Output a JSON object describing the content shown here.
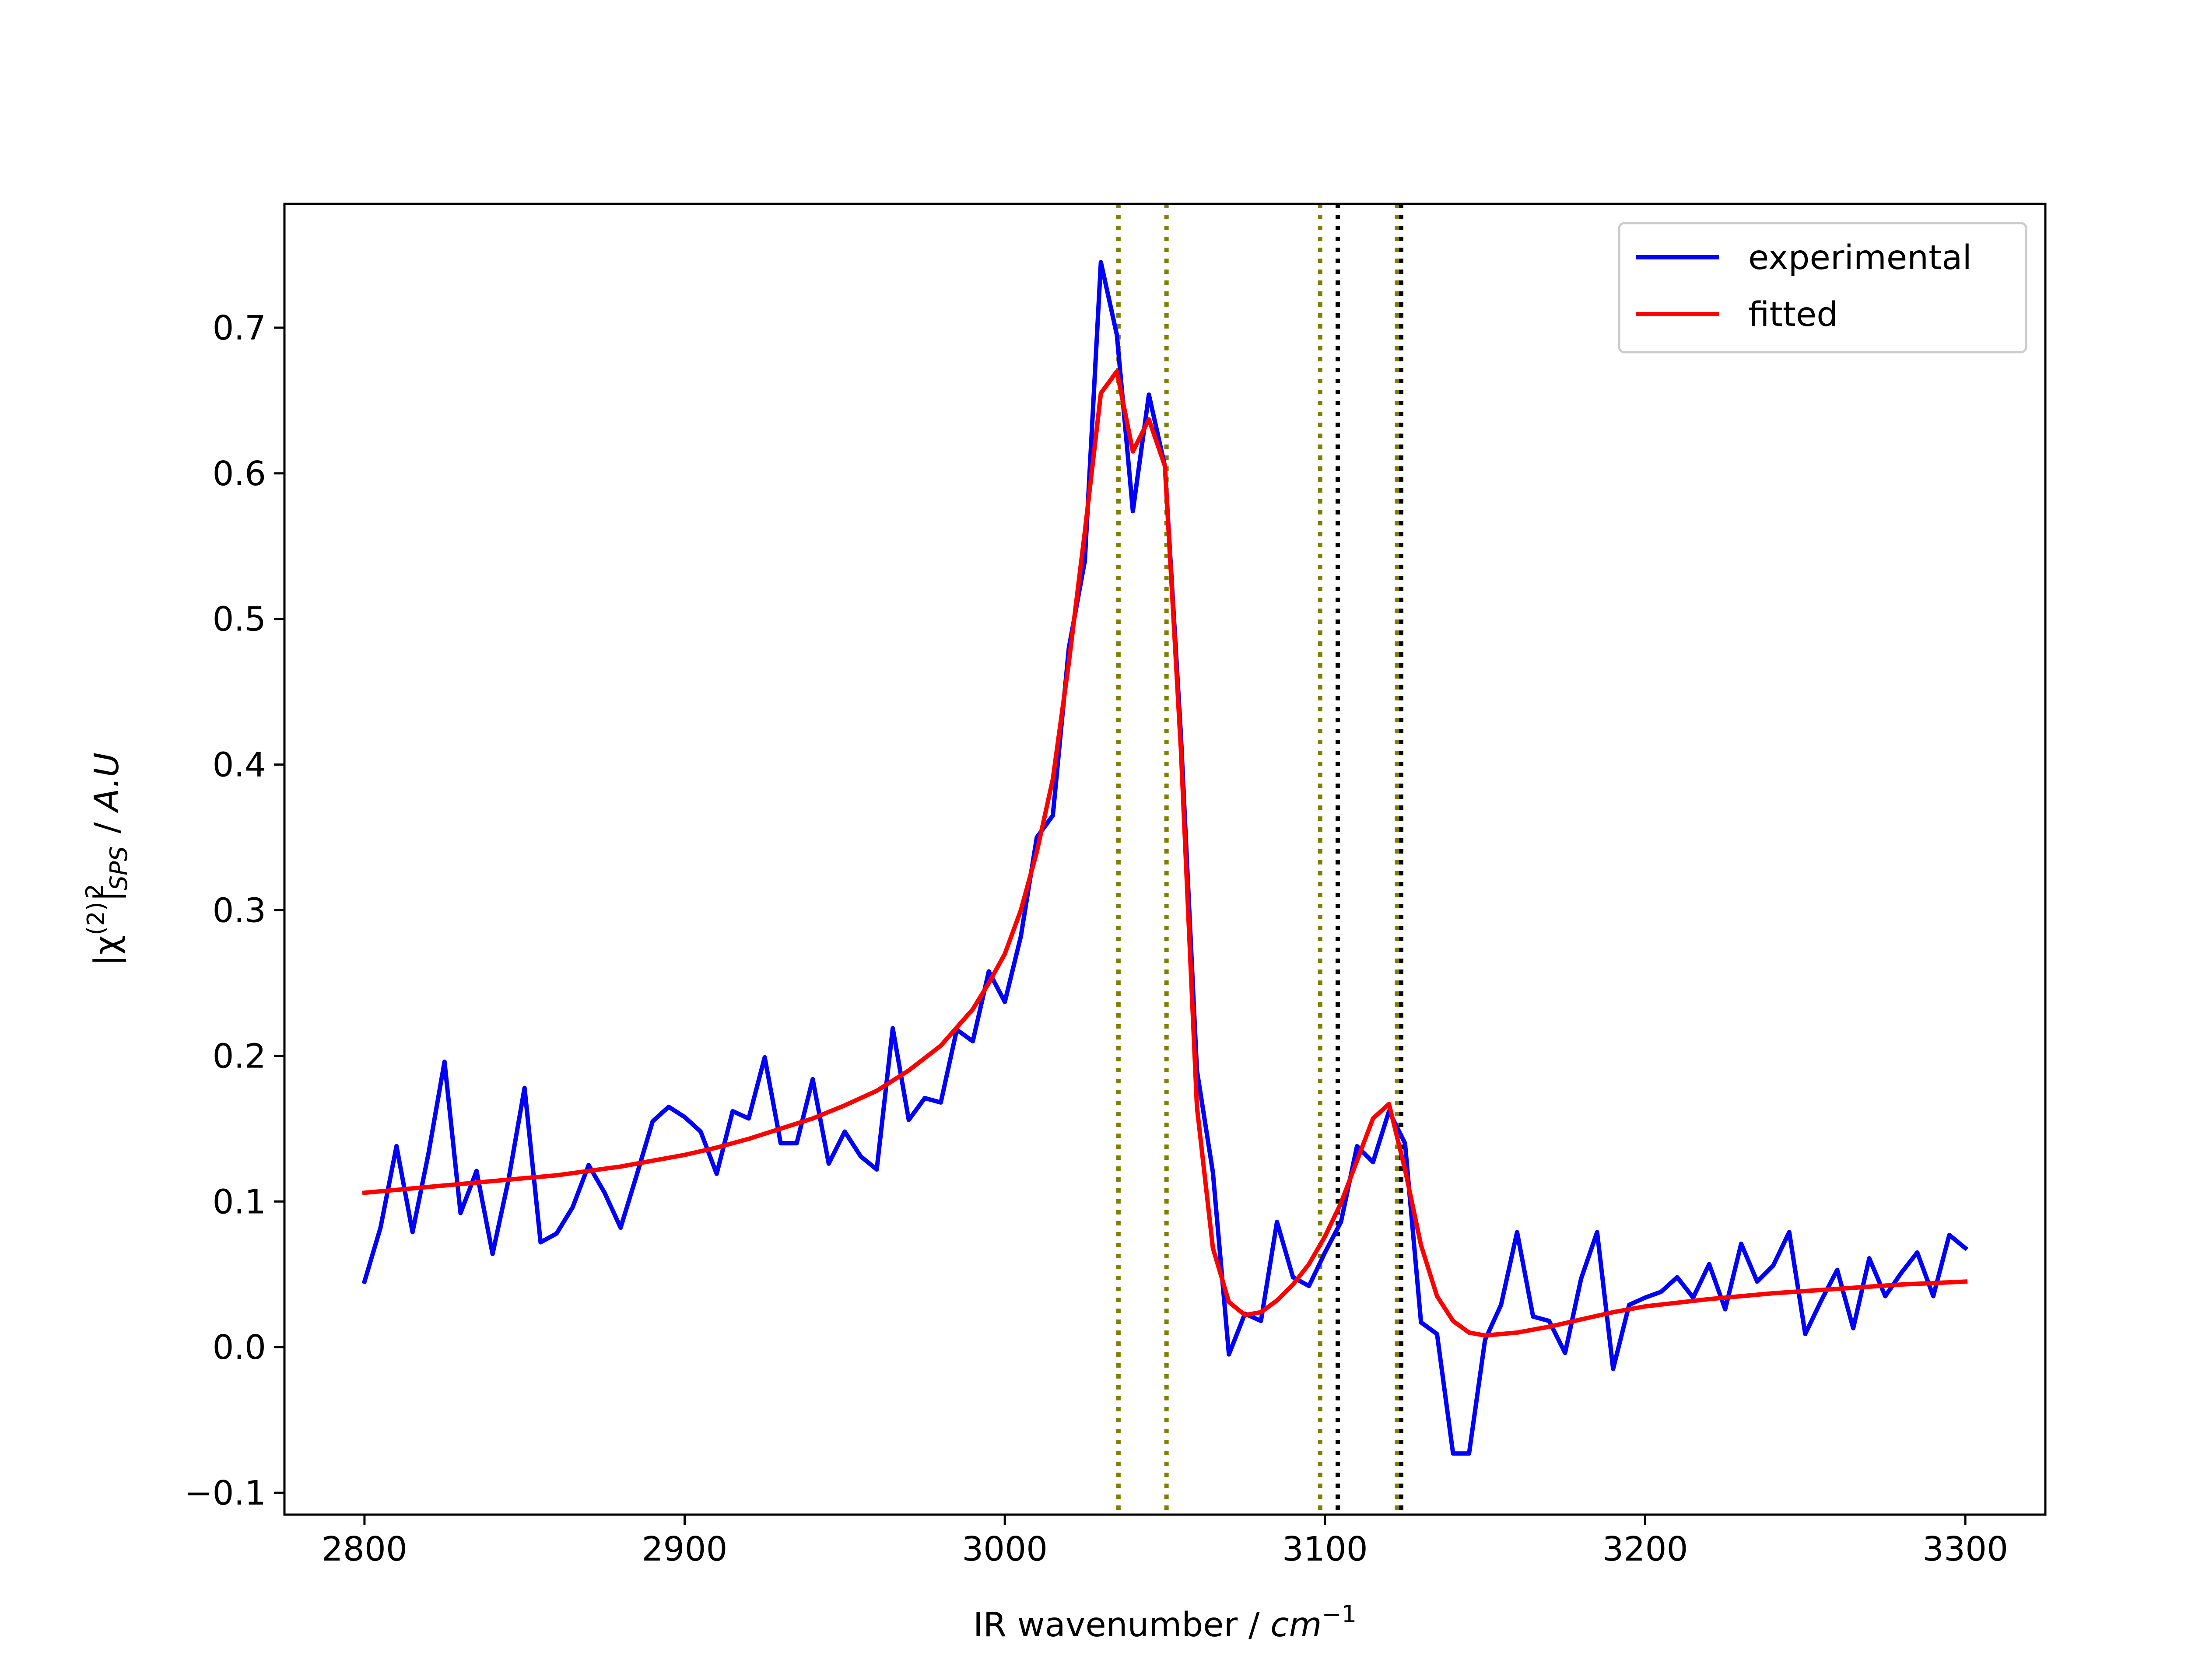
{
  "chart_data": {
    "type": "line",
    "xlabel_main": "IR wavenumber  /  ",
    "xlabel_unit": "cm",
    "xlabel_exp": "−1",
    "ylabel_main": "|χ",
    "ylabel_sup1": "(2)",
    "ylabel_bar": "|",
    "ylabel_sub": "SPS",
    "ylabel_sup2": "2",
    "ylabel_tail": "  /  ",
    "ylabel_unit": "A.U",
    "xlim": [
      2775,
      3325
    ],
    "ylim": [
      -0.115,
      0.785
    ],
    "xticks": [
      2800,
      2900,
      3000,
      3100,
      3200,
      3300
    ],
    "xtick_labels": [
      "2800",
      "2900",
      "3000",
      "3100",
      "3200",
      "3300"
    ],
    "yticks": [
      -0.1,
      0.0,
      0.1,
      0.2,
      0.3,
      0.4,
      0.5,
      0.6,
      0.7
    ],
    "ytick_labels": [
      "−0.1",
      "0.0",
      "0.1",
      "0.2",
      "0.3",
      "0.4",
      "0.5",
      "0.6",
      "0.7"
    ],
    "grid": false,
    "legend_position": "top-right",
    "series": [
      {
        "name": "experimental",
        "color": "#0000ff",
        "x": [
          2800,
          2805,
          2810,
          2815,
          2820,
          2825,
          2830,
          2835,
          2840,
          2845,
          2850,
          2855,
          2860,
          2865,
          2870,
          2875,
          2880,
          2885,
          2890,
          2895,
          2900,
          2905,
          2910,
          2915,
          2920,
          2925,
          2930,
          2935,
          2940,
          2945,
          2950,
          2955,
          2960,
          2965,
          2970,
          2975,
          2980,
          2985,
          2990,
          2995,
          3000,
          3005,
          3010,
          3015,
          3020,
          3025,
          3030,
          3035,
          3040,
          3045,
          3050,
          3055,
          3060,
          3065,
          3070,
          3075,
          3080,
          3085,
          3090,
          3095,
          3100,
          3105,
          3110,
          3115,
          3120,
          3125,
          3130,
          3135,
          3140,
          3145,
          3150,
          3155,
          3160,
          3165,
          3170,
          3175,
          3180,
          3185,
          3190,
          3195,
          3200,
          3205,
          3210,
          3215,
          3220,
          3225,
          3230,
          3235,
          3240,
          3245,
          3250,
          3255,
          3260,
          3265,
          3270,
          3275,
          3280,
          3285,
          3290,
          3295,
          3300
        ],
        "y": [
          0.045,
          0.082,
          0.138,
          0.079,
          0.133,
          0.196,
          0.092,
          0.121,
          0.064,
          0.115,
          0.178,
          0.072,
          0.078,
          0.096,
          0.125,
          0.106,
          0.082,
          0.118,
          0.155,
          0.165,
          0.158,
          0.148,
          0.119,
          0.162,
          0.157,
          0.199,
          0.14,
          0.14,
          0.184,
          0.126,
          0.148,
          0.131,
          0.122,
          0.219,
          0.156,
          0.171,
          0.168,
          0.218,
          0.21,
          0.258,
          0.237,
          0.282,
          0.35,
          0.365,
          0.48,
          0.54,
          0.745,
          0.695,
          0.574,
          0.654,
          0.605,
          0.42,
          0.19,
          0.12,
          -0.005,
          0.023,
          0.018,
          0.086,
          0.048,
          0.042,
          0.065,
          0.086,
          0.138,
          0.127,
          0.162,
          0.14,
          0.017,
          0.009,
          -0.073,
          -0.073,
          0.005,
          0.029,
          0.079,
          0.021,
          0.018,
          -0.004,
          0.047,
          0.079,
          -0.015,
          0.029,
          0.034,
          0.038,
          0.048,
          0.034,
          0.057,
          0.026,
          0.071,
          0.045,
          0.056,
          0.079,
          0.009,
          0.032,
          0.053,
          0.013,
          0.061,
          0.035,
          0.051,
          0.065,
          0.035,
          0.077,
          0.068
        ]
      },
      {
        "name": "fitted",
        "color": "#ff0000",
        "x": [
          2800,
          2810,
          2820,
          2830,
          2840,
          2850,
          2860,
          2870,
          2880,
          2890,
          2900,
          2910,
          2920,
          2930,
          2940,
          2950,
          2960,
          2970,
          2980,
          2990,
          2995,
          3000,
          3005,
          3010,
          3015,
          3020,
          3025,
          3030,
          3035,
          3040,
          3045,
          3050,
          3055,
          3060,
          3065,
          3070,
          3075,
          3080,
          3085,
          3090,
          3095,
          3100,
          3105,
          3110,
          3115,
          3120,
          3125,
          3130,
          3135,
          3140,
          3145,
          3150,
          3155,
          3160,
          3170,
          3180,
          3190,
          3200,
          3220,
          3240,
          3260,
          3280,
          3300
        ],
        "y": [
          0.106,
          0.108,
          0.11,
          0.112,
          0.114,
          0.116,
          0.118,
          0.121,
          0.124,
          0.128,
          0.132,
          0.137,
          0.143,
          0.15,
          0.157,
          0.166,
          0.176,
          0.19,
          0.207,
          0.232,
          0.25,
          0.27,
          0.3,
          0.34,
          0.39,
          0.47,
          0.56,
          0.655,
          0.67,
          0.615,
          0.637,
          0.605,
          0.41,
          0.165,
          0.068,
          0.031,
          0.022,
          0.024,
          0.032,
          0.043,
          0.057,
          0.076,
          0.099,
          0.128,
          0.157,
          0.167,
          0.122,
          0.07,
          0.035,
          0.018,
          0.01,
          0.008,
          0.009,
          0.01,
          0.014,
          0.019,
          0.024,
          0.028,
          0.033,
          0.037,
          0.04,
          0.043,
          0.045
        ]
      }
    ],
    "vlines": [
      {
        "x": 3035.5,
        "color": "#808000"
      },
      {
        "x": 3050.5,
        "color": "#808000"
      },
      {
        "x": 3098.5,
        "color": "#808000"
      },
      {
        "x": 3104.0,
        "color": "#000000"
      },
      {
        "x": 3122.5,
        "color": "#808000"
      },
      {
        "x": 3123.8,
        "color": "#000000"
      }
    ]
  }
}
